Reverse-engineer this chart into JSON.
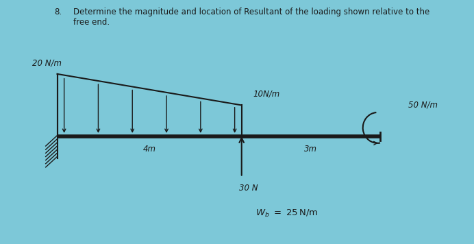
{
  "title_number": "8.",
  "title_text": "Determine the magnitude and location of Resultant of the loading shown relative to the\nfree end.",
  "background_color": "#7dc8d8",
  "beam_color": "#1a1a1a",
  "label_20Nm": "20 N/m",
  "label_10Nm": "10N/m",
  "label_50Nm": "50 N/m",
  "dim_label_4m": "4m",
  "dim_label_3m": "3m",
  "point_load_label": "30 N",
  "wb_label": "W_b =  25N/m",
  "arrow_color": "#1a1a1a",
  "text_color": "#1a1a1a",
  "fig_width": 6.92,
  "fig_height": 3.56,
  "dpi": 100
}
